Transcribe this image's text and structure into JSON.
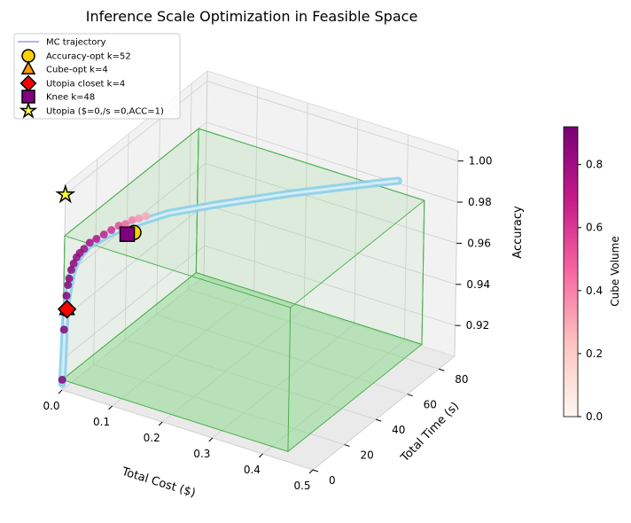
{
  "chart_data": {
    "type": "scatter",
    "projection": "3d",
    "title": "Inference Scale Optimization in Feasible Space",
    "xlabel": "Total Cost ($)",
    "ylabel": "Total Time (s)",
    "zlabel": "Accuracy",
    "xlim": [
      0.0,
      0.5
    ],
    "ylim": [
      0,
      90
    ],
    "zlim": [
      0.905,
      1.005
    ],
    "xticks": [
      "0.0",
      "0.1",
      "0.2",
      "0.3",
      "0.4",
      "0.5"
    ],
    "yticks": [
      "0",
      "20",
      "40",
      "60",
      "80"
    ],
    "zticks": [
      "0.92",
      "0.94",
      "0.96",
      "0.98",
      "1.00"
    ],
    "feasible_box": {
      "cost": [
        0.0,
        0.45
      ],
      "time": [
        0,
        85
      ],
      "accuracy": [
        0.91,
        0.98
      ]
    },
    "trajectory": {
      "label": "MC trajectory",
      "cost": [
        0.0,
        0.0,
        0.0,
        0.001,
        0.002,
        0.004,
        0.007,
        0.012,
        0.02,
        0.03,
        0.045,
        0.06,
        0.08,
        0.1,
        0.12,
        0.14,
        0.2,
        0.3,
        0.4,
        0.45
      ],
      "time": [
        0.0,
        0.5,
        1.0,
        1.5,
        2.0,
        2.5,
        3.0,
        3.8,
        4.5,
        5.5,
        7.0,
        9.0,
        12.0,
        15.0,
        18.0,
        21.0,
        30.0,
        45.0,
        60.0,
        68.0
      ],
      "accuracy": [
        0.908,
        0.92,
        0.935,
        0.945,
        0.95,
        0.955,
        0.961,
        0.966,
        0.97,
        0.974,
        0.977,
        0.98,
        0.983,
        0.985,
        0.987,
        0.989,
        0.992,
        0.996,
        0.999,
        1.0
      ]
    },
    "samples": {
      "cost": [
        0.0,
        0.0,
        0.0,
        0.001,
        0.002,
        0.003,
        0.005,
        0.008,
        0.012,
        0.016,
        0.022,
        0.03,
        0.04,
        0.05,
        0.06,
        0.07,
        0.08,
        0.09,
        0.1,
        0.11
      ],
      "time": [
        0.0,
        0.6,
        1.0,
        1.5,
        2.0,
        2.4,
        3.0,
        3.5,
        4.0,
        4.7,
        5.5,
        6.5,
        7.5,
        9.0,
        10.5,
        12.0,
        13.0,
        14.0,
        15.0,
        16.5
      ],
      "accuracy": [
        0.91,
        0.934,
        0.942,
        0.95,
        0.955,
        0.958,
        0.962,
        0.965,
        0.968,
        0.97,
        0.972,
        0.975,
        0.977,
        0.979,
        0.981,
        0.983,
        0.984,
        0.986,
        0.987,
        0.988
      ],
      "cube_volume": [
        0.9,
        0.9,
        0.89,
        0.89,
        0.88,
        0.88,
        0.87,
        0.86,
        0.85,
        0.84,
        0.82,
        0.78,
        0.74,
        0.68,
        0.62,
        0.54,
        0.46,
        0.4,
        0.34,
        0.3
      ]
    },
    "markers": [
      {
        "label": "Accuracy-opt k=52",
        "shape": "circle",
        "color": "#FFD000",
        "cost": 0.1,
        "time": 12.0,
        "accuracy": 0.982
      },
      {
        "label": "Cube-opt k=4",
        "shape": "triangle",
        "color": "#FF9900",
        "cost": 0.004,
        "time": 1.0,
        "accuracy": 0.944
      },
      {
        "label": "Utopia closet k=4",
        "shape": "diamond",
        "color": "#FF0000",
        "cost": 0.004,
        "time": 1.0,
        "accuracy": 0.944
      },
      {
        "label": "Knee k=48",
        "shape": "square",
        "color": "#800080",
        "cost": 0.09,
        "time": 11.0,
        "accuracy": 0.981
      },
      {
        "label": "Utopia ($=0,/s =0,ACC=1)",
        "shape": "star",
        "color": "#FFFF33",
        "cost": 0.0,
        "time": 0.0,
        "accuracy": 1.0
      }
    ],
    "colorbar": {
      "label": "Cube Volume",
      "range": [
        0.0,
        0.92
      ],
      "ticks": [
        "0.0",
        "0.2",
        "0.4",
        "0.6",
        "0.8"
      ],
      "colormap": "RdPu"
    },
    "colors": {
      "trajectory": "#87CEEB",
      "trajectory_legend": "#6A6AE8",
      "box_edge": "#4CAF50",
      "box_fill": "#90D890",
      "pane": "#F2F2F2",
      "grid": "#CFCFCF"
    },
    "legend": {
      "placement": "upper-left"
    }
  }
}
